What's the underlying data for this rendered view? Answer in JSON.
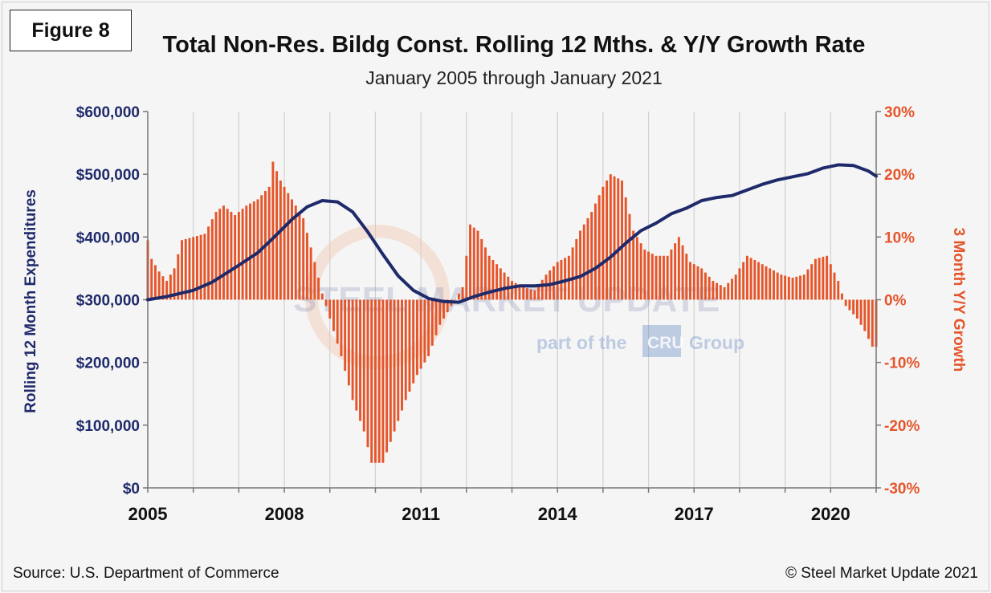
{
  "figure_label": "Figure 8",
  "title": "Total Non-Res. Bildg Const. Rolling 12 Mths. & Y/Y Growth Rate",
  "subtitle": "January 2005 through January 2021",
  "source": "Source: U.S. Department of Commerce",
  "copyright": "© Steel Market Update 2021",
  "watermark": {
    "brand": "STEEL MARKET UPDATE",
    "sub": "part of the",
    "badge": "CRU",
    "tail": "Group"
  },
  "colors": {
    "line": "#1f2a6b",
    "bars": "#e5552a",
    "grid": "#d0d0d0"
  },
  "chart_data": {
    "type": "bar",
    "x_range": [
      "2005-01",
      "2021-01"
    ],
    "xticks": [
      "2005",
      "2008",
      "2011",
      "2014",
      "2017",
      "2020"
    ],
    "yticks_left": [
      "$0",
      "$100,000",
      "$200,000",
      "$300,000",
      "$400,000",
      "$500,000",
      "$600,000"
    ],
    "yticks_right": [
      "-30%",
      "-20%",
      "-10%",
      "0%",
      "10%",
      "20%",
      "30%"
    ],
    "ylim_left": [
      0,
      600000
    ],
    "ylim_right": [
      -30,
      30
    ],
    "ylabel_left": "Rolling 12 Month Expenditures",
    "ylabel_right": "3 Month Y/Y Growth",
    "grid": "vertical",
    "series": [
      {
        "axis": "right",
        "type": "bar",
        "points": [
          [
            "2005-01",
            9.5
          ],
          [
            "2005-02",
            6.5
          ],
          [
            "2005-04",
            4.5
          ],
          [
            "2005-06",
            3
          ],
          [
            "2005-08",
            5
          ],
          [
            "2005-10",
            9.5
          ],
          [
            "2006-01",
            10
          ],
          [
            "2006-04",
            10.5
          ],
          [
            "2006-07",
            14
          ],
          [
            "2006-09",
            15
          ],
          [
            "2006-12",
            13.5
          ],
          [
            "2007-03",
            15
          ],
          [
            "2007-06",
            16
          ],
          [
            "2007-09",
            18
          ],
          [
            "2007-10",
            22
          ],
          [
            "2007-12",
            19
          ],
          [
            "2008-03",
            16
          ],
          [
            "2008-06",
            13
          ],
          [
            "2008-09",
            6
          ],
          [
            "2008-11",
            1
          ],
          [
            "2009-01",
            -3
          ],
          [
            "2009-04",
            -9
          ],
          [
            "2009-07",
            -16
          ],
          [
            "2009-10",
            -21
          ],
          [
            "2009-12",
            -26
          ],
          [
            "2010-03",
            -26
          ],
          [
            "2010-06",
            -21
          ],
          [
            "2010-09",
            -16
          ],
          [
            "2010-12",
            -12
          ],
          [
            "2011-03",
            -9
          ],
          [
            "2011-06",
            -4
          ],
          [
            "2011-09",
            -1
          ],
          [
            "2011-12",
            2
          ],
          [
            "2012-02",
            12
          ],
          [
            "2012-04",
            11
          ],
          [
            "2012-07",
            7
          ],
          [
            "2012-10",
            5
          ],
          [
            "2013-01",
            3
          ],
          [
            "2013-04",
            2
          ],
          [
            "2013-07",
            1.5
          ],
          [
            "2013-10",
            4
          ],
          [
            "2014-01",
            6
          ],
          [
            "2014-04",
            7
          ],
          [
            "2014-07",
            11
          ],
          [
            "2014-10",
            14
          ],
          [
            "2015-01",
            18
          ],
          [
            "2015-03",
            20
          ],
          [
            "2015-06",
            19
          ],
          [
            "2015-09",
            11
          ],
          [
            "2015-12",
            8
          ],
          [
            "2016-03",
            7
          ],
          [
            "2016-06",
            7
          ],
          [
            "2016-09",
            10
          ],
          [
            "2016-12",
            6
          ],
          [
            "2017-03",
            5
          ],
          [
            "2017-06",
            3
          ],
          [
            "2017-09",
            2
          ],
          [
            "2017-12",
            4
          ],
          [
            "2018-03",
            7
          ],
          [
            "2018-06",
            6
          ],
          [
            "2018-09",
            5
          ],
          [
            "2018-12",
            4
          ],
          [
            "2019-03",
            3.5
          ],
          [
            "2019-06",
            4
          ],
          [
            "2019-09",
            6.5
          ],
          [
            "2019-12",
            7
          ],
          [
            "2020-03",
            3
          ],
          [
            "2020-05",
            -1
          ],
          [
            "2020-08",
            -3
          ],
          [
            "2020-10",
            -5
          ],
          [
            "2020-12",
            -7.5
          ],
          [
            "2021-01",
            -7.5
          ]
        ]
      },
      {
        "axis": "left",
        "type": "line",
        "points": [
          [
            "2005-01",
            300000
          ],
          [
            "2005-06",
            305000
          ],
          [
            "2006-01",
            315000
          ],
          [
            "2006-06",
            328000
          ],
          [
            "2007-01",
            355000
          ],
          [
            "2007-06",
            375000
          ],
          [
            "2007-10",
            398000
          ],
          [
            "2008-03",
            428000
          ],
          [
            "2008-07",
            448000
          ],
          [
            "2008-11",
            458000
          ],
          [
            "2009-03",
            456000
          ],
          [
            "2009-07",
            440000
          ],
          [
            "2009-11",
            408000
          ],
          [
            "2010-03",
            372000
          ],
          [
            "2010-07",
            338000
          ],
          [
            "2010-11",
            315000
          ],
          [
            "2011-03",
            302000
          ],
          [
            "2011-07",
            297000
          ],
          [
            "2011-11",
            296000
          ],
          [
            "2012-03",
            305000
          ],
          [
            "2012-07",
            312000
          ],
          [
            "2012-11",
            318000
          ],
          [
            "2013-03",
            322000
          ],
          [
            "2013-07",
            322000
          ],
          [
            "2013-11",
            324000
          ],
          [
            "2014-03",
            330000
          ],
          [
            "2014-07",
            337000
          ],
          [
            "2014-11",
            350000
          ],
          [
            "2015-03",
            368000
          ],
          [
            "2015-07",
            390000
          ],
          [
            "2015-11",
            410000
          ],
          [
            "2016-03",
            422000
          ],
          [
            "2016-07",
            437000
          ],
          [
            "2016-11",
            446000
          ],
          [
            "2017-03",
            458000
          ],
          [
            "2017-07",
            463000
          ],
          [
            "2017-11",
            466000
          ],
          [
            "2018-03",
            475000
          ],
          [
            "2018-07",
            484000
          ],
          [
            "2018-11",
            491000
          ],
          [
            "2019-03",
            496000
          ],
          [
            "2019-07",
            501000
          ],
          [
            "2019-11",
            510000
          ],
          [
            "2020-03",
            515000
          ],
          [
            "2020-07",
            514000
          ],
          [
            "2020-11",
            505000
          ],
          [
            "2021-01",
            497000
          ]
        ]
      }
    ]
  }
}
